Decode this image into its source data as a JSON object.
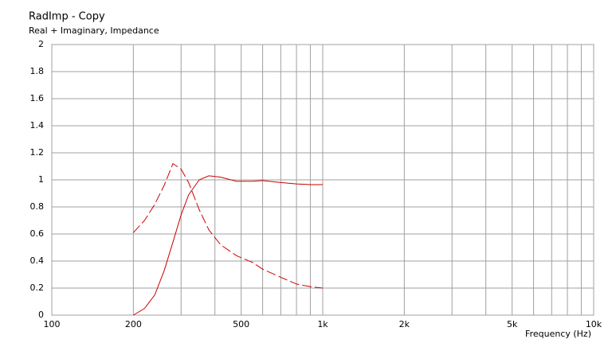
{
  "chart_data": {
    "type": "line",
    "title": "RadImp - Copy",
    "subtitle": "Real + Imaginary, Impedance",
    "xlabel": "Frequency  (Hz)",
    "xscale": "log",
    "xlim": [
      100,
      10000
    ],
    "xticks": [
      100,
      200,
      500,
      {
        "value": 1000,
        "label": "1k"
      },
      {
        "value": 2000,
        "label": "2k"
      },
      {
        "value": 5000,
        "label": "5k"
      },
      {
        "value": 10000,
        "label": "10k"
      }
    ],
    "xminor": [
      300,
      400,
      600,
      700,
      800,
      900,
      3000,
      4000,
      6000,
      7000,
      8000,
      9000
    ],
    "ylim": [
      0,
      2
    ],
    "yticks": [
      0,
      0.2,
      0.4,
      0.6,
      0.8,
      1,
      1.2,
      1.4,
      1.6,
      1.8,
      2
    ],
    "grid": true,
    "x": [
      200,
      220,
      240,
      260,
      280,
      300,
      320,
      350,
      380,
      420,
      480,
      550,
      600,
      700,
      800,
      900,
      1000
    ],
    "series": [
      {
        "color": "#cc0000",
        "style": "solid",
        "values": [
          0.0,
          0.05,
          0.15,
          0.33,
          0.54,
          0.74,
          0.89,
          1.0,
          1.03,
          1.02,
          0.99,
          0.99,
          0.995,
          0.98,
          0.97,
          0.965,
          0.965
        ]
      },
      {
        "color": "#cc0000",
        "style": "dashed",
        "values": [
          0.61,
          0.7,
          0.82,
          0.96,
          1.12,
          1.08,
          0.98,
          0.78,
          0.63,
          0.52,
          0.44,
          0.39,
          0.34,
          0.28,
          0.23,
          0.21,
          0.2
        ]
      }
    ]
  }
}
